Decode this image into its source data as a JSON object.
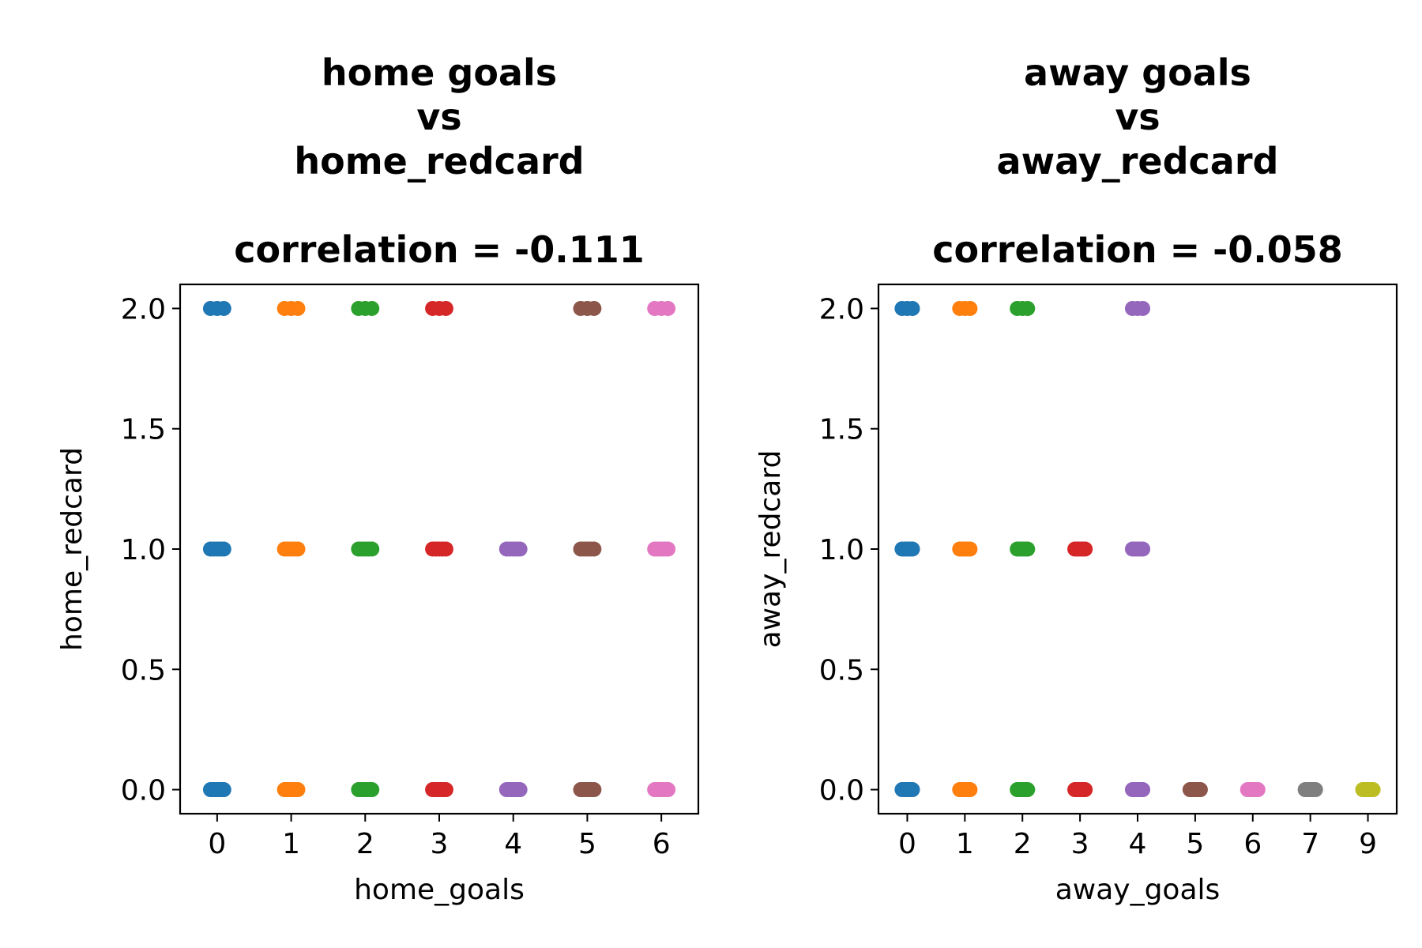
{
  "chart_data": [
    {
      "type": "scatter",
      "title": [
        "home goals",
        "vs",
        "home_redcard",
        "",
        "correlation = -0.111"
      ],
      "xlabel": "home_goals",
      "ylabel": "home_redcard",
      "xcategories": [
        "0",
        "1",
        "2",
        "3",
        "4",
        "5",
        "6"
      ],
      "yticks": [
        "0.0",
        "0.5",
        "1.0",
        "1.5",
        "2.0"
      ],
      "ytick_values": [
        0.0,
        0.5,
        1.0,
        1.5,
        2.0
      ],
      "ylim": [
        -0.1,
        2.1
      ],
      "grid": false,
      "points": [
        {
          "x": "0",
          "y": [
            0,
            1,
            2
          ]
        },
        {
          "x": "1",
          "y": [
            0,
            1,
            2
          ]
        },
        {
          "x": "2",
          "y": [
            0,
            1,
            2
          ]
        },
        {
          "x": "3",
          "y": [
            0,
            1,
            2
          ]
        },
        {
          "x": "4",
          "y": [
            0,
            1
          ]
        },
        {
          "x": "5",
          "y": [
            0,
            1,
            2
          ]
        },
        {
          "x": "6",
          "y": [
            0,
            1,
            2
          ]
        }
      ],
      "colors": [
        "#1f77b4",
        "#ff7f0e",
        "#2ca02c",
        "#d62728",
        "#9467bd",
        "#8c564b",
        "#e377c2"
      ]
    },
    {
      "type": "scatter",
      "title": [
        "away goals",
        "vs",
        "away_redcard",
        "",
        "correlation = -0.058"
      ],
      "xlabel": "away_goals",
      "ylabel": "away_redcard",
      "xcategories": [
        "0",
        "1",
        "2",
        "3",
        "4",
        "5",
        "6",
        "7",
        "9"
      ],
      "yticks": [
        "0.0",
        "0.5",
        "1.0",
        "1.5",
        "2.0"
      ],
      "ytick_values": [
        0.0,
        0.5,
        1.0,
        1.5,
        2.0
      ],
      "ylim": [
        -0.1,
        2.1
      ],
      "grid": false,
      "points": [
        {
          "x": "0",
          "y": [
            0,
            1,
            2
          ]
        },
        {
          "x": "1",
          "y": [
            0,
            1,
            2
          ]
        },
        {
          "x": "2",
          "y": [
            0,
            1,
            2
          ]
        },
        {
          "x": "3",
          "y": [
            0,
            1
          ]
        },
        {
          "x": "4",
          "y": [
            0,
            1,
            2
          ]
        },
        {
          "x": "5",
          "y": [
            0
          ]
        },
        {
          "x": "6",
          "y": [
            0
          ]
        },
        {
          "x": "7",
          "y": [
            0
          ]
        },
        {
          "x": "9",
          "y": [
            0
          ]
        }
      ],
      "colors": [
        "#1f77b4",
        "#ff7f0e",
        "#2ca02c",
        "#d62728",
        "#9467bd",
        "#8c564b",
        "#e377c2",
        "#7f7f7f",
        "#bcbd22"
      ]
    }
  ]
}
